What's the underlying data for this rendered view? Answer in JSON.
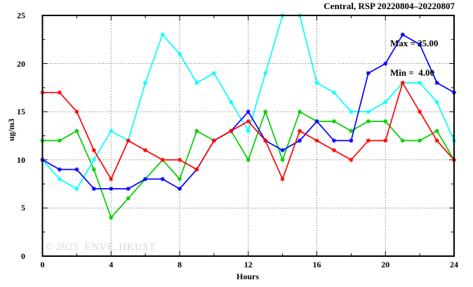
{
  "chart": {
    "title": "Central, RSP 20220804–20220807",
    "legend": {
      "max_label": "Max = 25.00",
      "min_label": "Min =  4.00"
    },
    "ylabel": "ug/m3",
    "xlabel": "Hours",
    "watermark": "© 2025  ENVF, HKUST",
    "colors": {
      "background": "#ffffff",
      "axis": "#000000",
      "grid": "#404040",
      "watermark": "#d8d8d8"
    }
  },
  "chart_data": {
    "type": "line",
    "title": "Central, RSP 20220804–20220807",
    "xlabel": "Hours",
    "ylabel": "ug/m3",
    "xlim": [
      0,
      24
    ],
    "ylim": [
      0,
      25
    ],
    "x_ticks": [
      0,
      4,
      8,
      12,
      16,
      20,
      24
    ],
    "x_minor_ticks": [
      2,
      6,
      10,
      14,
      18,
      22
    ],
    "y_ticks": [
      0,
      5,
      10,
      15,
      20,
      25
    ],
    "y_minor_ticks": [
      2.5,
      7.5,
      12.5,
      17.5,
      22.5
    ],
    "grid": true,
    "marker": "asterisk",
    "legend_position": "top-right-inside",
    "annotations": [
      "Max = 25.00",
      "Min =  4.00"
    ],
    "x": [
      0,
      1,
      2,
      3,
      4,
      5,
      6,
      7,
      8,
      9,
      10,
      11,
      12,
      13,
      14,
      15,
      16,
      17,
      18,
      19,
      20,
      21,
      22,
      23,
      24
    ],
    "series": [
      {
        "name": "green",
        "color": "#00cc00",
        "values": [
          12,
          12,
          13,
          9,
          4,
          6,
          8,
          10,
          8,
          13,
          12,
          13,
          10,
          15,
          10,
          15,
          14,
          14,
          13,
          14,
          14,
          12,
          12,
          13,
          10
        ]
      },
      {
        "name": "cyan",
        "color": "#00ffff",
        "values": [
          10,
          8,
          7,
          10,
          13,
          12,
          18,
          23,
          21,
          18,
          19,
          16,
          13,
          19,
          25,
          25,
          18,
          17,
          15,
          15,
          16,
          18,
          18,
          16,
          12
        ]
      },
      {
        "name": "blue",
        "color": "#0000ff",
        "values": [
          10,
          9,
          9,
          7,
          7,
          7,
          8,
          8,
          7,
          9,
          12,
          13,
          15,
          12,
          11,
          12,
          14,
          12,
          12,
          19,
          20,
          23,
          22,
          18,
          17
        ]
      },
      {
        "name": "red",
        "color": "#ff0000",
        "values": [
          17,
          17,
          15,
          11,
          8,
          12,
          11,
          10,
          10,
          9,
          12,
          13,
          14,
          12,
          8,
          13,
          12,
          11,
          10,
          12,
          12,
          18,
          15,
          12,
          10
        ]
      }
    ]
  }
}
